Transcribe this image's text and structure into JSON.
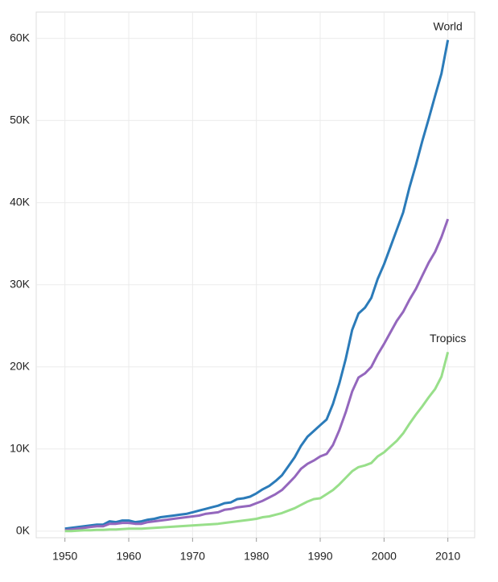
{
  "chart_data": {
    "type": "line",
    "x": [
      1950,
      1951,
      1952,
      1953,
      1954,
      1955,
      1956,
      1957,
      1958,
      1959,
      1960,
      1961,
      1962,
      1963,
      1964,
      1965,
      1966,
      1967,
      1968,
      1969,
      1970,
      1971,
      1972,
      1973,
      1974,
      1975,
      1976,
      1977,
      1978,
      1979,
      1980,
      1981,
      1982,
      1983,
      1984,
      1985,
      1986,
      1987,
      1988,
      1989,
      1990,
      1991,
      1992,
      1993,
      1994,
      1995,
      1996,
      1997,
      1998,
      1999,
      2000,
      2001,
      2002,
      2003,
      2004,
      2005,
      2006,
      2007,
      2008,
      2009,
      2010
    ],
    "series": [
      {
        "name": "World",
        "color": "#2b7bb9",
        "values": [
          0.3,
          0.4,
          0.5,
          0.6,
          0.7,
          0.8,
          0.8,
          1.2,
          1.1,
          1.3,
          1.3,
          1.1,
          1.2,
          1.4,
          1.5,
          1.7,
          1.8,
          1.9,
          2.0,
          2.1,
          2.3,
          2.5,
          2.7,
          2.9,
          3.1,
          3.4,
          3.5,
          3.9,
          4.0,
          4.2,
          4.6,
          5.1,
          5.5,
          6.1,
          6.8,
          7.9,
          9.0,
          10.4,
          11.5,
          12.2,
          12.9,
          13.6,
          15.5,
          18.0,
          21.0,
          24.5,
          26.5,
          27.2,
          28.4,
          30.7,
          32.5,
          34.6,
          36.7,
          38.8,
          41.9,
          44.6,
          47.5,
          50.2,
          53.0,
          55.7,
          59.8
        ]
      },
      {
        "color": "#9467bd",
        "values": [
          0.1,
          0.2,
          0.3,
          0.4,
          0.5,
          0.6,
          0.6,
          0.9,
          0.9,
          1.0,
          1.0,
          0.9,
          0.9,
          1.1,
          1.2,
          1.3,
          1.4,
          1.5,
          1.6,
          1.7,
          1.8,
          1.9,
          2.1,
          2.2,
          2.3,
          2.6,
          2.7,
          2.9,
          3.0,
          3.1,
          3.4,
          3.7,
          4.1,
          4.5,
          5.0,
          5.8,
          6.6,
          7.6,
          8.2,
          8.6,
          9.1,
          9.4,
          10.5,
          12.3,
          14.5,
          17.0,
          18.7,
          19.2,
          20.0,
          21.5,
          22.8,
          24.2,
          25.6,
          26.7,
          28.2,
          29.5,
          31.1,
          32.7,
          34.0,
          35.8,
          38.0
        ]
      },
      {
        "name": "Tropics",
        "color": "#98df8a",
        "values": [
          0,
          0,
          0.05,
          0.1,
          0.1,
          0.15,
          0.15,
          0.2,
          0.2,
          0.25,
          0.3,
          0.3,
          0.3,
          0.35,
          0.4,
          0.45,
          0.5,
          0.55,
          0.6,
          0.65,
          0.7,
          0.75,
          0.8,
          0.85,
          0.9,
          1.0,
          1.1,
          1.2,
          1.3,
          1.4,
          1.5,
          1.7,
          1.8,
          2.0,
          2.2,
          2.5,
          2.8,
          3.2,
          3.6,
          3.9,
          4.0,
          4.5,
          5.0,
          5.7,
          6.5,
          7.3,
          7.8,
          8.0,
          8.3,
          9.1,
          9.6,
          10.3,
          11.0,
          11.9,
          13.1,
          14.2,
          15.2,
          16.3,
          17.3,
          18.8,
          21.8
        ]
      }
    ],
    "xlim": [
      1945.5,
      2014.2
    ],
    "xticks": [
      1950,
      1960,
      1970,
      1980,
      1990,
      2000,
      2010
    ],
    "ylim": [
      -0.8,
      63.2
    ],
    "yticks": [
      {
        "value": 0,
        "label": "0K"
      },
      {
        "value": 10,
        "label": "10K"
      },
      {
        "value": 20,
        "label": "20K"
      },
      {
        "value": 30,
        "label": "30K"
      },
      {
        "value": 40,
        "label": "40K"
      },
      {
        "value": 50,
        "label": "50K"
      },
      {
        "value": 60,
        "label": "60K"
      }
    ],
    "grid": true
  }
}
